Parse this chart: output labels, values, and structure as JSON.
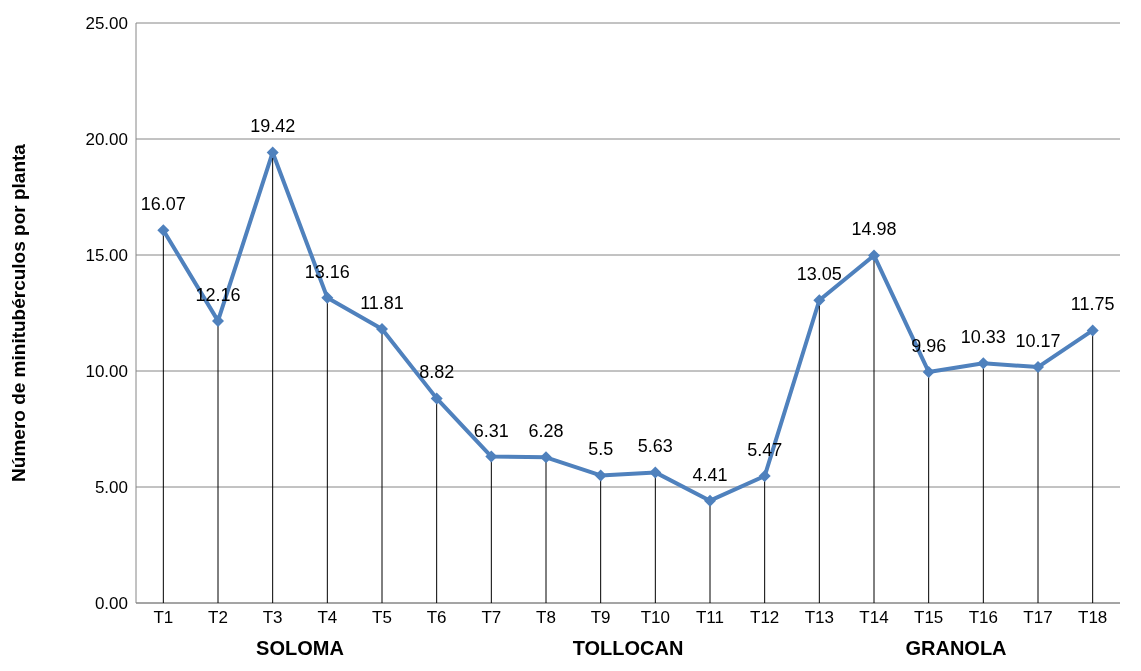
{
  "chart_data": {
    "type": "line",
    "ylabel": "Número de minitubérculos por planta",
    "categories": [
      "T1",
      "T2",
      "T3",
      "T4",
      "T5",
      "T6",
      "T7",
      "T8",
      "T9",
      "T10",
      "T11",
      "T12",
      "T13",
      "T14",
      "T15",
      "T16",
      "T17",
      "T18"
    ],
    "series": [
      {
        "color": "#4f81bd",
        "values": [
          16.07,
          12.16,
          19.42,
          13.16,
          11.81,
          8.82,
          6.31,
          6.28,
          5.5,
          5.63,
          4.41,
          5.47,
          13.05,
          14.98,
          9.96,
          10.33,
          10.17,
          11.75
        ]
      }
    ],
    "ylim": [
      0,
      25
    ],
    "yticks": [
      {
        "value": 0,
        "label": "0.00"
      },
      {
        "value": 5,
        "label": "5.00"
      },
      {
        "value": 10,
        "label": "10.00"
      },
      {
        "value": 15,
        "label": "15.00"
      },
      {
        "value": 20,
        "label": "20.00"
      },
      {
        "value": 25,
        "label": "25.00"
      }
    ],
    "grid": "y",
    "marker": "diamond",
    "data_labels": true,
    "legend": false,
    "annotations": [
      "SOLOMA",
      "TOLLOCAN",
      "GRANOLA"
    ]
  }
}
